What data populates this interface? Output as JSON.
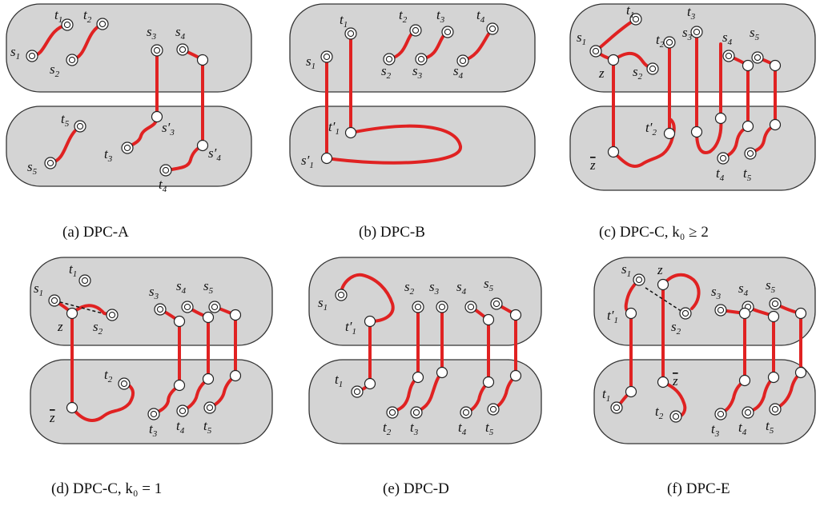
{
  "captions": {
    "a": "(a) DPC-A",
    "b": "(b) DPC-B",
    "c": "(c) DPC-C, k₀ ≥ 2",
    "d": "(d) DPC-C, k₀ = 1",
    "e": "(e) DPC-D",
    "f": "(f) DPC-E"
  },
  "labels": {
    "s1": "s",
    "s2": "s",
    "s3": "s",
    "s4": "s",
    "s5": "s",
    "t1": "t",
    "t2": "t",
    "t3": "t",
    "t4": "t",
    "t5": "t",
    "s3p": "s′",
    "s4p": "s′",
    "s1p": "s′",
    "t1p": "t′",
    "t2p": "t′",
    "z": "z",
    "zbar": "z",
    "sub1": "1",
    "sub2": "2",
    "sub3": "3",
    "sub4": "4",
    "sub5": "5"
  },
  "colors": {
    "path": "#e02222",
    "region": "#d4d4d4"
  }
}
